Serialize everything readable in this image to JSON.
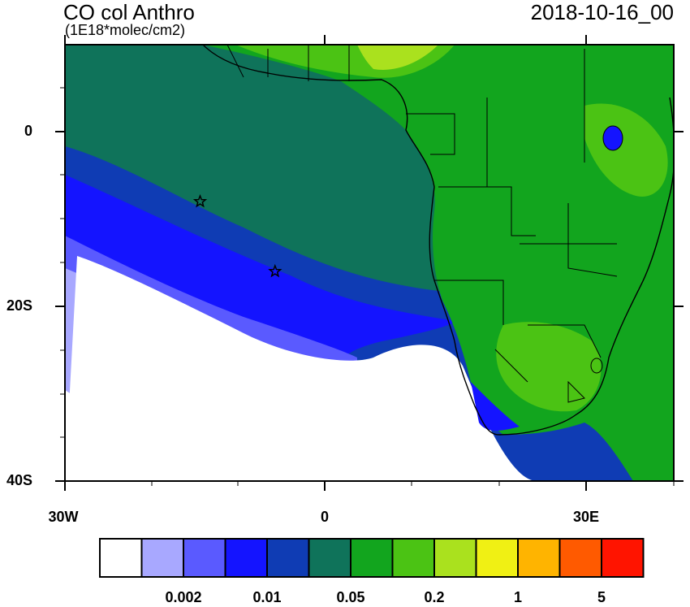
{
  "title": "CO col Anthro",
  "units": "(1E18*molec/cm2)",
  "datetime": "2018-10-16_00",
  "axes": {
    "y_ticks": [
      "0",
      "20S",
      "40S"
    ],
    "x_ticks": [
      "30W",
      "0",
      "30E"
    ]
  },
  "colorbar": {
    "colors": [
      "#ffffff",
      "#a8a8ff",
      "#5a5aff",
      "#1414ff",
      "#0f3cb4",
      "#0f735a",
      "#12a51e",
      "#4bc314",
      "#aae11e",
      "#f0f014",
      "#ffb400",
      "#ff5a00",
      "#ff1400"
    ],
    "labels": [
      "0.002",
      "0.01",
      "0.05",
      "0.2",
      "1",
      "5"
    ]
  },
  "markers": [
    {
      "name": "star",
      "lon": -14.3,
      "lat": -8.0
    },
    {
      "name": "star",
      "lon": -5.7,
      "lat": -16.0
    }
  ]
}
